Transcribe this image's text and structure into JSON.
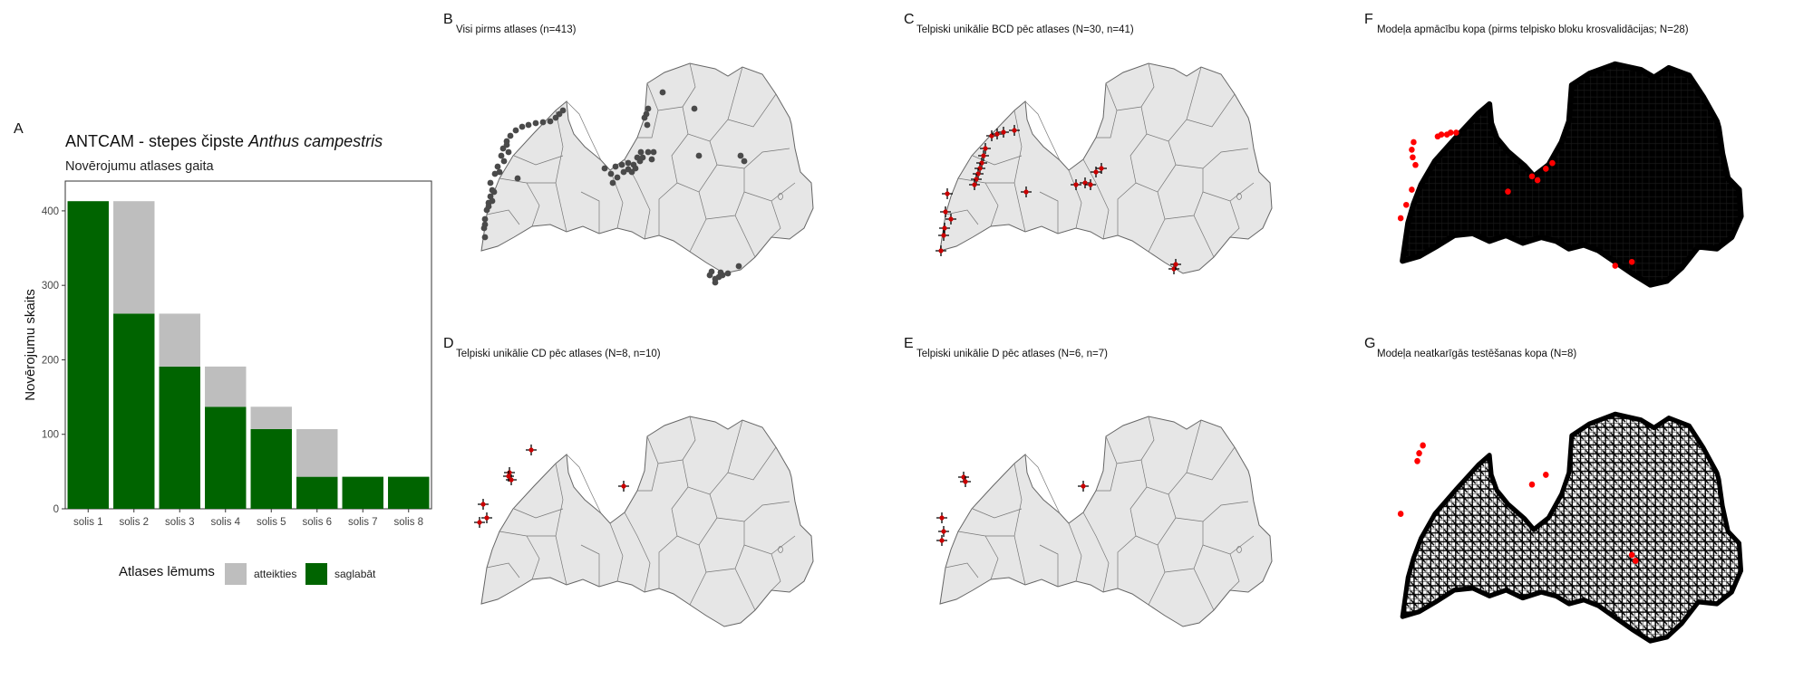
{
  "panels": {
    "A": {
      "label": "A"
    },
    "B": {
      "label": "B",
      "title": "Visi pirms atlases (n=413)"
    },
    "C": {
      "label": "C",
      "title": "Telpiski unikālie BCD pēc atlases (N=30, n=41)"
    },
    "D": {
      "label": "D",
      "title": "Telpiski unikālie CD pēc atlases (N=8, n=10)"
    },
    "E": {
      "label": "E",
      "title": "Telpiski unikālie D pēc atlases (N=6, n=7)"
    },
    "F": {
      "label": "F",
      "title": "Modeļa apmācību kopa (pirms telpisko bloku krosvalidācijas; N=28)"
    },
    "G": {
      "label": "G",
      "title": "Modeļa neatkarīgās testēšanas kopa (N=8)"
    }
  },
  "colors": {
    "keep": "#006400",
    "reject": "#bebebe",
    "map_fill": "#e6e6e6",
    "map_border": "#666666",
    "point_dark": "#4a4a4a",
    "point_red": "#ff0000",
    "cross": "#000000"
  },
  "chart_data": {
    "type": "bar",
    "title_prefix": "ANTCAM - stepes čipste ",
    "title_species": "Anthus campestris",
    "subtitle": "Novērojumu atlases gaita",
    "xlabel": "",
    "ylabel": "Novērojumu skaits",
    "categories": [
      "solis 1",
      "solis 2",
      "solis 3",
      "solis 4",
      "solis 5",
      "solis 6",
      "solis 7",
      "solis 8"
    ],
    "series": [
      {
        "name": "saglabāt",
        "color": "#006400",
        "values": [
          413,
          262,
          191,
          137,
          107,
          43,
          43,
          43
        ]
      },
      {
        "name": "atteikties",
        "color": "#bebebe",
        "values": [
          0,
          151,
          71,
          54,
          30,
          64,
          0,
          0
        ]
      }
    ],
    "stacked": true,
    "ylim": [
      0,
      440
    ],
    "yticks": [
      0,
      100,
      200,
      300,
      400
    ],
    "grid": false,
    "legend": {
      "title": "Atlases lēmums",
      "position": "bottom",
      "items": [
        {
          "label": "atteikties",
          "color": "#bebebe"
        },
        {
          "label": "saglabāt",
          "color": "#006400"
        }
      ]
    }
  }
}
